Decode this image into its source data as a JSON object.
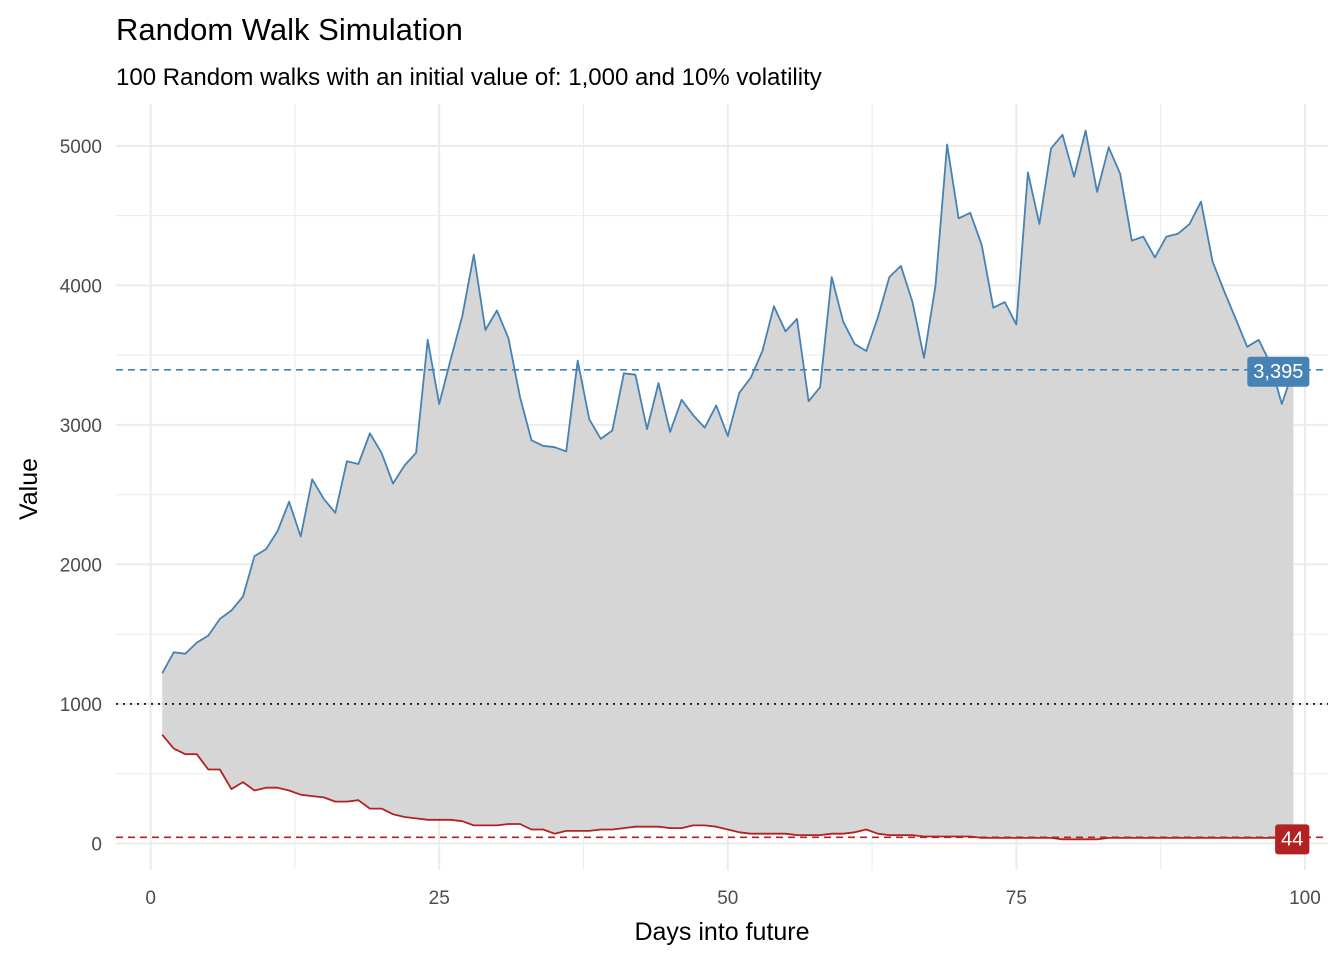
{
  "chart_data": {
    "type": "area",
    "title": "Random Walk Simulation",
    "subtitle": "100 Random walks with an initial value of: 1,000 and 10% volatility",
    "xlabel": "Days into future",
    "ylabel": "Value",
    "xlim": [
      -3,
      102
    ],
    "ylim": [
      -190,
      5300
    ],
    "x_ticks": [
      0,
      25,
      50,
      75,
      100
    ],
    "x_minor_ticks": [
      12.5,
      37.5,
      62.5,
      87.5
    ],
    "y_ticks": [
      0,
      1000,
      2000,
      3000,
      4000,
      5000
    ],
    "y_minor_ticks": [
      500,
      1500,
      2500,
      3500,
      4500
    ],
    "x_tick_labels": [
      "0",
      "25",
      "50",
      "75",
      "100"
    ],
    "y_tick_labels": [
      "0",
      "1000",
      "2000",
      "3000",
      "4000",
      "5000"
    ],
    "grid": true,
    "initial_value": 1000,
    "colors": {
      "upper": "#4682b4",
      "lower": "#b22222",
      "fill": "#d6d6d6",
      "initial": "#000000",
      "grid": "#ebebeb"
    },
    "x": [
      1,
      2,
      3,
      4,
      5,
      6,
      7,
      8,
      9,
      10,
      11,
      12,
      13,
      14,
      15,
      16,
      17,
      18,
      19,
      20,
      21,
      22,
      23,
      24,
      25,
      26,
      27,
      28,
      29,
      30,
      31,
      32,
      33,
      34,
      35,
      36,
      37,
      38,
      39,
      40,
      41,
      42,
      43,
      44,
      45,
      46,
      47,
      48,
      49,
      50,
      51,
      52,
      53,
      54,
      55,
      56,
      57,
      58,
      59,
      60,
      61,
      62,
      63,
      64,
      65,
      66,
      67,
      68,
      69,
      70,
      71,
      72,
      73,
      74,
      75,
      76,
      77,
      78,
      79,
      80,
      81,
      82,
      83,
      84,
      85,
      86,
      87,
      88,
      89,
      90,
      91,
      92,
      93,
      94,
      95,
      96,
      97,
      98,
      99
    ],
    "series": [
      {
        "key": "upper",
        "values": [
          1220,
          1370,
          1360,
          1440,
          1490,
          1610,
          1670,
          1770,
          2060,
          2110,
          2240,
          2450,
          2200,
          2610,
          2470,
          2370,
          2740,
          2720,
          2940,
          2800,
          2580,
          2710,
          2800,
          3610,
          3150,
          3470,
          3780,
          4220,
          3680,
          3820,
          3620,
          3200,
          2890,
          2850,
          2840,
          2810,
          3460,
          3040,
          2900,
          2960,
          3370,
          3360,
          2970,
          3300,
          2950,
          3180,
          3070,
          2980,
          3140,
          2920,
          3230,
          3340,
          3530,
          3850,
          3670,
          3760,
          3170,
          3270,
          4060,
          3740,
          3580,
          3530,
          3770,
          4060,
          4140,
          3880,
          3480,
          4000,
          5010,
          4480,
          4520,
          4290,
          3840,
          3880,
          3720,
          4810,
          4440,
          4980,
          5080,
          4780,
          5110,
          4670,
          4990,
          4800,
          4320,
          4350,
          4200,
          4350,
          4370,
          4440,
          4600,
          4170,
          3960,
          3760,
          3560,
          3610,
          3440,
          3150,
          3395
        ]
      },
      {
        "key": "lower",
        "values": [
          780,
          680,
          640,
          640,
          530,
          530,
          390,
          440,
          380,
          400,
          400,
          380,
          350,
          340,
          330,
          300,
          300,
          310,
          250,
          250,
          210,
          190,
          180,
          170,
          170,
          170,
          160,
          130,
          130,
          130,
          140,
          140,
          100,
          100,
          70,
          90,
          90,
          90,
          100,
          100,
          110,
          120,
          120,
          120,
          110,
          110,
          130,
          130,
          120,
          100,
          80,
          70,
          70,
          70,
          70,
          60,
          60,
          60,
          70,
          70,
          80,
          100,
          70,
          60,
          60,
          60,
          50,
          50,
          50,
          50,
          50,
          40,
          40,
          40,
          40,
          40,
          40,
          40,
          30,
          30,
          30,
          30,
          40,
          40,
          40,
          40,
          40,
          40,
          40,
          40,
          40,
          40,
          40,
          40,
          40,
          40,
          40,
          40,
          44
        ]
      }
    ],
    "end_labels": [
      {
        "key": "upper",
        "value": 3395,
        "text": "3,395"
      },
      {
        "key": "lower",
        "value": 44,
        "text": "44"
      }
    ]
  }
}
